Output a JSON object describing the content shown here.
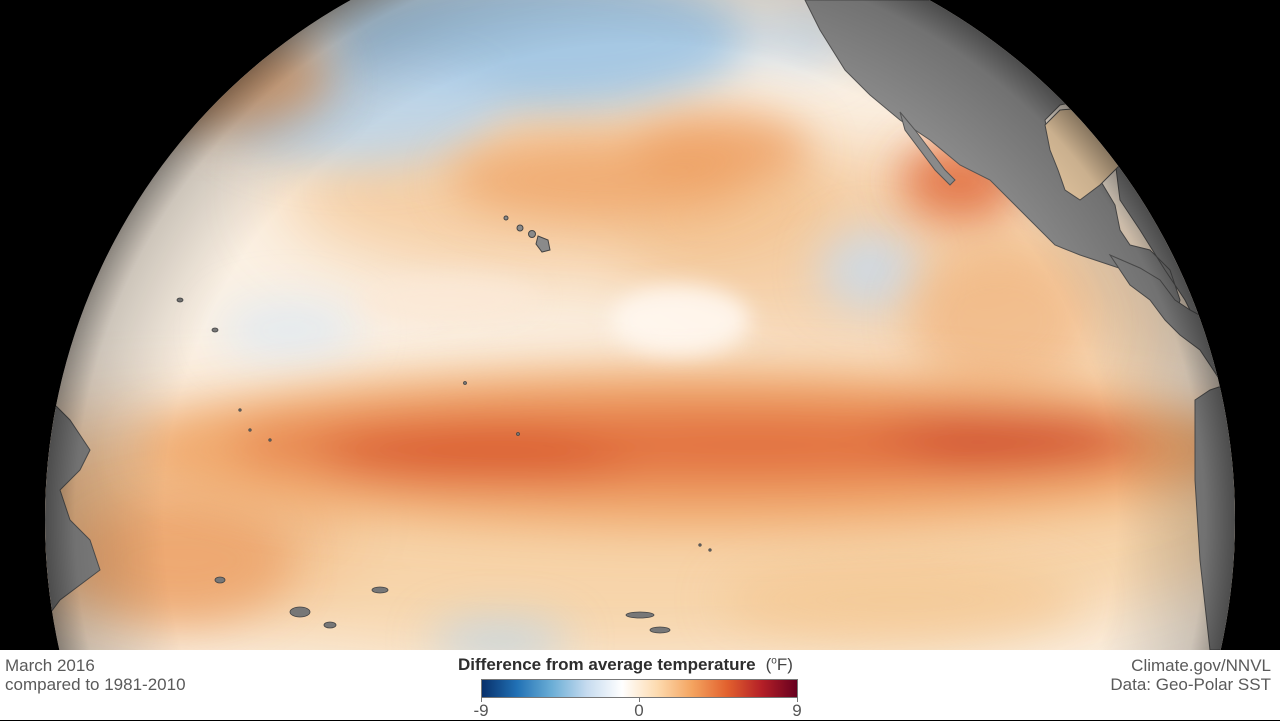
{
  "caption": {
    "date": "March 2016",
    "baseline": "compared to 1981-2010"
  },
  "credits": {
    "source": "Climate.gov/NNVL",
    "data": "Data: Geo-Polar SST"
  },
  "legend": {
    "title": "Difference from average temperature",
    "unit_prefix": "(",
    "unit_degree": "o",
    "unit_suffix": "F)",
    "min_label": "-9",
    "mid_label": "0",
    "max_label": "9",
    "range": [
      -9,
      9
    ],
    "colors": [
      "#08306b",
      "#2171b5",
      "#6baed6",
      "#c6dbef",
      "#ffffff",
      "#fddbb0",
      "#f4a460",
      "#e2612e",
      "#b41f27",
      "#67001f"
    ]
  },
  "map": {
    "projection": "orthographic",
    "region": "Pacific Ocean",
    "land_color": "#8c8c8c",
    "background": "#000000"
  }
}
